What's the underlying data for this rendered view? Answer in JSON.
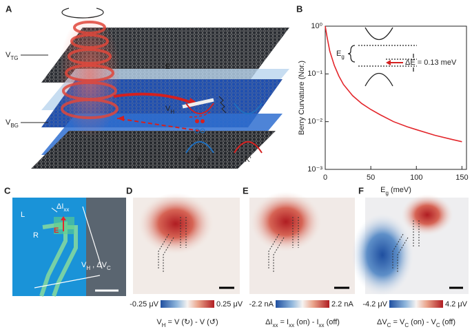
{
  "panel_a": {
    "label": "A",
    "v_tg": [
      {
        "text": "V"
      },
      {
        "text": "TG",
        "sub": true
      }
    ],
    "field": "E",
    "v_h": [
      {
        "text": "V"
      },
      {
        "text": "H",
        "sub": true
      }
    ],
    "v_bg": [
      {
        "text": "V"
      },
      {
        "text": "BG",
        "sub": true
      }
    ],
    "valley_k": "K",
    "valley_k_prime": "K'"
  },
  "chart_data": {
    "type": "line",
    "panel_label": "B",
    "y_label": "Berry Curvature (Nor.)",
    "x_label": [
      {
        "text": "E"
      },
      {
        "text": "g",
        "sub": true
      },
      {
        "text": " (meV)"
      }
    ],
    "log_y": true,
    "xlim": [
      0,
      155
    ],
    "xticks": [
      0,
      50,
      100,
      150
    ],
    "ylim": [
      0.001,
      1
    ],
    "yticks": [
      {
        "value": 0.001,
        "label": "10⁻³"
      },
      {
        "value": 0.01,
        "label": "10⁻²"
      },
      {
        "value": 0.1,
        "label": "10⁻¹"
      },
      {
        "value": 1,
        "label": "10⁰"
      }
    ],
    "x": [
      0,
      2,
      5,
      10,
      15,
      20,
      30,
      40,
      50,
      60,
      75,
      90,
      100,
      120,
      140,
      150
    ],
    "series": [
      {
        "color": "#e3262b",
        "values": [
          1,
          0.6,
          0.3,
          0.15,
          0.09,
          0.06,
          0.035,
          0.024,
          0.018,
          0.014,
          0.01,
          0.0078,
          0.0068,
          0.0052,
          0.0042,
          0.0038
        ]
      }
    ],
    "annotation_gap": [
      {
        "text": "E"
      },
      {
        "text": "g",
        "sub": true
      }
    ],
    "annotation_delta": "ΔE = 0.13 meV"
  },
  "panels": [
    {
      "label": "C",
      "left": "L",
      "right": "R",
      "current": [
        {
          "text": "ΔI"
        },
        {
          "text": "xx",
          "sub": true
        }
      ],
      "field": "E",
      "voltage": [
        {
          "text": "V"
        },
        {
          "text": "H",
          "sub": true
        },
        {
          "text": " , ΔV"
        },
        {
          "text": "C",
          "sub": true
        }
      ]
    },
    {
      "label": "D",
      "scale_min": "-0.25 μV",
      "scale_max": "0.25 μV",
      "formula": [
        {
          "text": "V"
        },
        {
          "text": "H",
          "sub": true
        },
        {
          "text": " = V (↻) - V (↺)"
        }
      ]
    },
    {
      "label": "E",
      "scale_min": "-2.2 nA",
      "scale_max": "2.2 nA",
      "formula": [
        {
          "text": "ΔI"
        },
        {
          "text": "xx",
          "sub": true
        },
        {
          "text": " = I"
        },
        {
          "text": "xx",
          "sub": true
        },
        {
          "text": " (on) - I"
        },
        {
          "text": "xx",
          "sub": true
        },
        {
          "text": " (off)"
        }
      ]
    },
    {
      "label": "F",
      "scale_min": "-4.2 μV",
      "scale_max": "4.2 μV",
      "formula": [
        {
          "text": "ΔV"
        },
        {
          "text": "C",
          "sub": true
        },
        {
          "text": " = V"
        },
        {
          "text": "C",
          "sub": true
        },
        {
          "text": " (on) - V"
        },
        {
          "text": "C",
          "sub": true
        },
        {
          "text": " (off)"
        }
      ]
    }
  ]
}
